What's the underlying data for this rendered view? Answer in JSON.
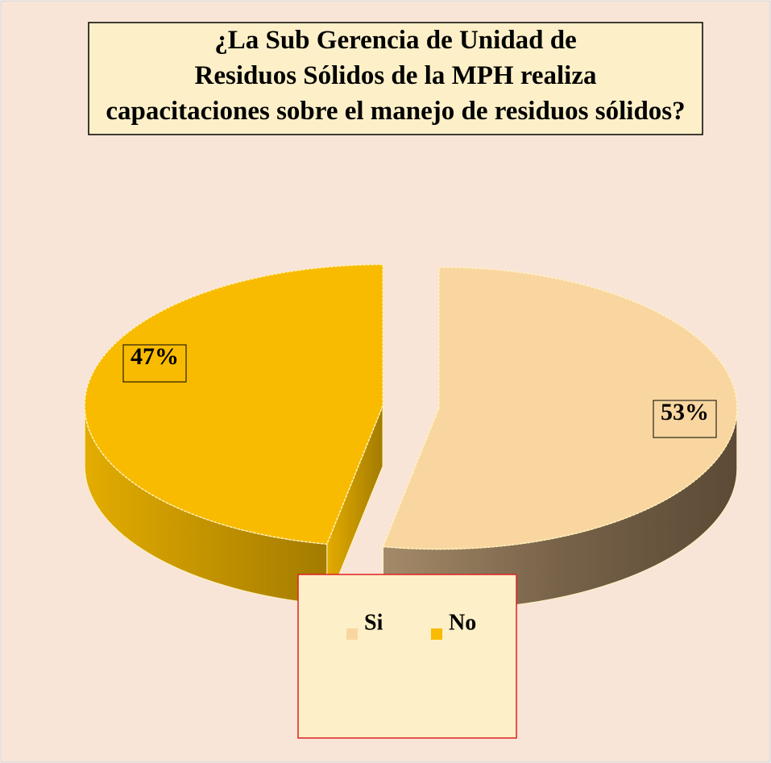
{
  "chart_data": {
    "type": "pie",
    "title": "¿La Sub Gerencia de Unidad de Residuos Sólidos de la MPH realiza capacitaciones sobre el manejo de residuos sólidos?",
    "categories": [
      "Si",
      "No"
    ],
    "values": [
      53,
      47
    ],
    "value_labels": [
      "53%",
      "47%"
    ],
    "colors": [
      "#f9d6a0",
      "#f8bb00"
    ],
    "legend": "bottom"
  }
}
